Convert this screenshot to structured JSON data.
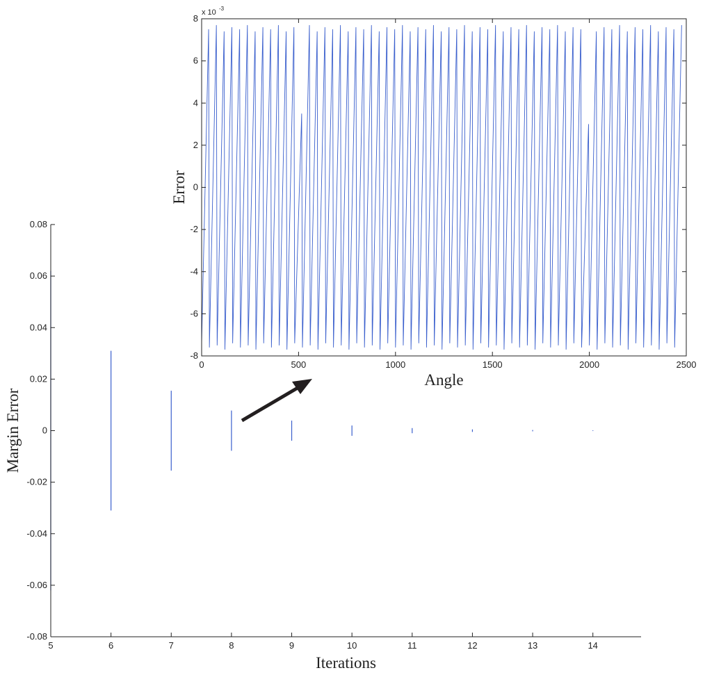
{
  "chart_data": [
    {
      "type": "vlines",
      "xlabel": "Iterations",
      "ylabel": "Margin Error",
      "color": "#3a5fcd",
      "x": [
        5,
        6,
        7,
        8,
        9,
        10,
        11,
        12,
        13,
        14
      ],
      "ymin": [
        -0.062,
        -0.031,
        -0.0155,
        -0.0078,
        -0.0039,
        -0.002,
        -0.001,
        -0.0005,
        -0.00025,
        -0.00012
      ],
      "ymax": [
        0.062,
        0.031,
        0.0155,
        0.0078,
        0.0039,
        0.002,
        0.001,
        0.0005,
        0.00025,
        0.00012
      ],
      "xlim": [
        5,
        14.8
      ],
      "xticks": [
        5,
        6,
        7,
        8,
        9,
        10,
        11,
        12,
        13,
        14
      ],
      "ylim": [
        -0.08,
        0.08
      ],
      "yticks": [
        -0.08,
        -0.06,
        -0.04,
        -0.02,
        0,
        0.02,
        0.04,
        0.06,
        0.08
      ],
      "box": false
    },
    {
      "type": "line",
      "xlabel": "Angle",
      "ylabel": "Error",
      "color": "#3a5fcd",
      "y_exponent_base": "x 10",
      "y_exponent": "-3",
      "x": [
        0,
        36,
        40,
        76,
        80,
        116,
        120,
        156,
        160,
        196,
        200,
        236,
        240,
        276,
        280,
        316,
        320,
        356,
        360,
        396,
        400,
        436,
        440,
        476,
        480,
        516,
        520,
        556,
        560,
        596,
        600,
        636,
        640,
        676,
        680,
        716,
        720,
        756,
        760,
        796,
        800,
        836,
        840,
        876,
        880,
        916,
        920,
        956,
        960,
        996,
        1000,
        1036,
        1040,
        1076,
        1080,
        1116,
        1120,
        1156,
        1160,
        1196,
        1200,
        1236,
        1240,
        1276,
        1280,
        1316,
        1320,
        1356,
        1360,
        1396,
        1400,
        1436,
        1440,
        1476,
        1480,
        1516,
        1520,
        1556,
        1560,
        1596,
        1600,
        1636,
        1640,
        1676,
        1680,
        1716,
        1720,
        1756,
        1760,
        1796,
        1800,
        1836,
        1840,
        1876,
        1880,
        1916,
        1920,
        1956,
        1960,
        1996,
        2000,
        2036,
        2040,
        2076,
        2080,
        2116,
        2120,
        2156,
        2160,
        2196,
        2200,
        2236,
        2240,
        2276,
        2280,
        2316,
        2320,
        2356,
        2360,
        2396,
        2400,
        2436,
        2440,
        2476
      ],
      "y": [
        -0.0074,
        0.0075,
        -0.0076,
        0.0077,
        -0.0075,
        0.0074,
        -0.0077,
        0.0076,
        -0.0074,
        0.0075,
        -0.0076,
        0.0077,
        -0.0075,
        0.0074,
        -0.0077,
        0.0076,
        -0.0074,
        0.0075,
        -0.0076,
        0.0077,
        -0.0075,
        0.0074,
        -0.0077,
        0.0076,
        -0.0074,
        0.0035,
        -0.0076,
        0.0077,
        -0.0075,
        0.0074,
        -0.0077,
        0.0076,
        -0.0074,
        0.0075,
        -0.0076,
        0.0077,
        -0.0075,
        0.0074,
        -0.0077,
        0.0076,
        -0.0074,
        0.0075,
        -0.0076,
        0.0077,
        -0.0075,
        0.0074,
        -0.0077,
        0.0076,
        -0.0074,
        0.0075,
        -0.0076,
        0.0077,
        -0.0075,
        0.0074,
        -0.0077,
        0.0076,
        -0.0074,
        0.0075,
        -0.0076,
        0.0077,
        -0.0075,
        0.0074,
        -0.0077,
        0.0076,
        -0.0074,
        0.0075,
        -0.0076,
        0.0077,
        -0.0075,
        0.0074,
        -0.0077,
        0.0076,
        -0.0074,
        0.0075,
        -0.0076,
        0.0077,
        -0.0075,
        0.0074,
        -0.0077,
        0.0076,
        -0.0074,
        0.0075,
        -0.0076,
        0.0077,
        -0.0075,
        0.0074,
        -0.0077,
        0.0076,
        -0.0074,
        0.0075,
        -0.0076,
        0.0077,
        -0.0075,
        0.0074,
        -0.0077,
        0.0076,
        -0.0074,
        0.0075,
        -0.0076,
        0.003,
        -0.0075,
        0.0074,
        -0.0077,
        0.0076,
        -0.0074,
        0.0075,
        -0.0076,
        0.0077,
        -0.0075,
        0.0074,
        -0.0077,
        0.0076,
        -0.0074,
        0.0075,
        -0.0076,
        0.0077,
        -0.0075,
        0.0074,
        -0.0077,
        0.0076,
        -0.0074,
        0.0075,
        -0.0076,
        0.0077
      ],
      "xlim": [
        0,
        2500
      ],
      "xticks": [
        0,
        500,
        1000,
        1500,
        2000,
        2500
      ],
      "ylim": [
        -0.008,
        0.008
      ],
      "yticks": [
        {
          "value": -0.008,
          "label": "-8"
        },
        {
          "value": -0.006,
          "label": "-6"
        },
        {
          "value": -0.004,
          "label": "-4"
        },
        {
          "value": -0.002,
          "label": "-2"
        },
        {
          "value": 0,
          "label": "0"
        },
        {
          "value": 0.002,
          "label": "2"
        },
        {
          "value": 0.004,
          "label": "4"
        },
        {
          "value": 0.006,
          "label": "6"
        },
        {
          "value": 0.008,
          "label": "8"
        }
      ],
      "box": true
    }
  ]
}
